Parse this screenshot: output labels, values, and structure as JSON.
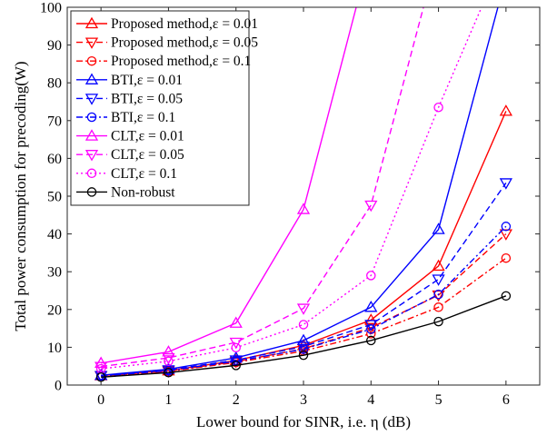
{
  "chart_data": {
    "type": "line",
    "xlabel": "Lower bound for SINR, i.e. η (dB)",
    "ylabel": "Total power consumption for precoding(W)",
    "xlim": [
      -0.5,
      6.5
    ],
    "ylim": [
      0,
      100
    ],
    "xticks": [
      0,
      1,
      2,
      3,
      4,
      5,
      6
    ],
    "yticks": [
      0,
      10,
      20,
      30,
      40,
      50,
      60,
      70,
      80,
      90,
      100
    ],
    "x": [
      0,
      1,
      2,
      3,
      4,
      5,
      6
    ],
    "grid": false,
    "legend_position": "top-left",
    "series": [
      {
        "name": "Proposed method,ε = 0.01",
        "color": "#ff0000",
        "line": "solid",
        "marker": "triangle-up",
        "values": [
          2.5,
          3.8,
          6.5,
          10.5,
          17.2,
          31.5,
          72.5
        ]
      },
      {
        "name": "Proposed method,ε = 0.05",
        "color": "#ff0000",
        "line": "dashed",
        "marker": "triangle-down",
        "values": [
          2.4,
          3.7,
          6.2,
          9.6,
          15.2,
          23.8,
          40.0
        ]
      },
      {
        "name": "Proposed method,ε = 0.1",
        "color": "#ff0000",
        "line": "dashdot",
        "marker": "circle",
        "values": [
          2.3,
          3.6,
          6.0,
          9.0,
          13.6,
          20.6,
          33.6
        ]
      },
      {
        "name": "BTI,ε = 0.01",
        "color": "#0000ff",
        "line": "solid",
        "marker": "triangle-up",
        "values": [
          2.6,
          4.2,
          7.2,
          11.8,
          20.6,
          41.2,
          108
        ]
      },
      {
        "name": "BTI,ε = 0.05",
        "color": "#0000ff",
        "line": "dashed",
        "marker": "triangle-down",
        "values": [
          2.5,
          4.0,
          6.6,
          10.2,
          16.0,
          28.0,
          53.5
        ]
      },
      {
        "name": "BTI,ε = 0.1",
        "color": "#0000ff",
        "line": "dashdot",
        "marker": "circle",
        "values": [
          2.4,
          3.8,
          6.3,
          9.5,
          14.8,
          24.0,
          42.0
        ]
      },
      {
        "name": "CLT,ε = 0.01",
        "color": "#ff00ff",
        "line": "solid",
        "marker": "triangle-up",
        "values": [
          5.8,
          8.8,
          16.4,
          46.5,
          115,
          null,
          null
        ]
      },
      {
        "name": "CLT,ε = 0.05",
        "color": "#ff00ff",
        "line": "dashed",
        "marker": "triangle-down",
        "values": [
          4.9,
          7.2,
          11.3,
          20.3,
          47.6,
          115,
          null
        ]
      },
      {
        "name": "CLT,ε = 0.1",
        "color": "#ff00ff",
        "line": "dotted",
        "marker": "circle",
        "values": [
          4.3,
          6.3,
          9.9,
          16.0,
          29.0,
          73.5,
          115
        ]
      },
      {
        "name": "Non-robust",
        "color": "#000000",
        "line": "solid",
        "marker": "circle",
        "values": [
          2.1,
          3.3,
          5.2,
          7.9,
          11.8,
          16.8,
          23.6
        ]
      }
    ]
  }
}
